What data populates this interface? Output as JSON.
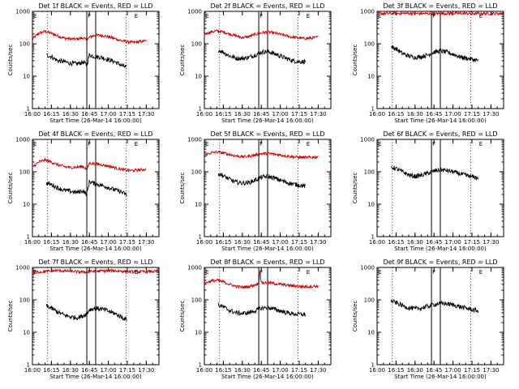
{
  "chart_data": [
    {
      "type": "line",
      "title": "Det 1f BLACK = Events, RED = LLD",
      "xlabel": "Start Time (26-Mar-14 16:00:00)",
      "ylabel": "Counts/sec",
      "yscale": "log",
      "ylim": [
        1,
        1000
      ],
      "xlim_minutes": [
        0,
        100
      ],
      "xticks": [
        "16:00",
        "16:15",
        "16:30",
        "16:45",
        "17:00",
        "17:15",
        "17:30"
      ],
      "yticks": [
        "1",
        "10",
        "100",
        "1000"
      ],
      "markers": [
        {
          "label": "E",
          "time": "16:00"
        },
        {
          "label": "F",
          "time": "16:43"
        },
        {
          "label": "E",
          "time": "17:20"
        }
      ],
      "vlines_dotted": [
        "16:12",
        "17:14"
      ],
      "vlines_solid": [
        "16:43",
        "16:50"
      ],
      "series": [
        {
          "color": "#cc0000",
          "t": [
            0,
            5,
            10,
            15,
            20,
            25,
            30,
            35,
            40,
            43,
            45,
            50,
            55,
            60,
            65,
            70,
            75,
            80,
            85,
            90
          ],
          "values": [
            140,
            210,
            240,
            210,
            175,
            150,
            140,
            140,
            150,
            130,
            160,
            185,
            180,
            165,
            145,
            125,
            115,
            110,
            115,
            125
          ]
        },
        {
          "color": "#000000",
          "t": [
            11,
            15,
            20,
            25,
            30,
            35,
            40,
            43,
            45,
            50,
            55,
            60,
            65,
            70,
            75
          ],
          "values": [
            45,
            40,
            30,
            28,
            25,
            24,
            27,
            22,
            45,
            40,
            38,
            32,
            28,
            22,
            18
          ]
        }
      ]
    },
    {
      "type": "line",
      "title": "Det 2f BLACK = Events, RED = LLD",
      "xlabel": "Start Time (26-Mar-14 16:00:00)",
      "ylabel": "Counts/sec",
      "yscale": "log",
      "ylim": [
        1,
        1000
      ],
      "xlim_minutes": [
        0,
        100
      ],
      "xticks": [
        "16:00",
        "16:15",
        "16:30",
        "16:45",
        "17:00",
        "17:15",
        "17:30"
      ],
      "yticks": [
        "1",
        "10",
        "100",
        "1000"
      ],
      "markers": [
        {
          "label": "E",
          "time": "16:00"
        },
        {
          "label": "F",
          "time": "16:43"
        },
        {
          "label": "E",
          "time": "17:20"
        }
      ],
      "vlines_dotted": [
        "16:12",
        "17:14"
      ],
      "vlines_solid": [
        "16:43",
        "16:50"
      ],
      "series": [
        {
          "color": "#cc0000",
          "t": [
            0,
            5,
            10,
            15,
            20,
            25,
            30,
            35,
            40,
            45,
            50,
            55,
            60,
            65,
            70,
            75,
            80,
            85,
            90
          ],
          "values": [
            200,
            230,
            250,
            230,
            200,
            175,
            155,
            165,
            195,
            215,
            230,
            215,
            195,
            175,
            160,
            150,
            145,
            150,
            160
          ]
        },
        {
          "color": "#000000",
          "t": [
            11,
            15,
            20,
            25,
            30,
            35,
            40,
            45,
            50,
            55,
            60,
            65,
            70,
            75,
            80
          ],
          "values": [
            65,
            55,
            42,
            36,
            35,
            38,
            45,
            55,
            58,
            50,
            42,
            35,
            30,
            28,
            28
          ]
        }
      ]
    },
    {
      "type": "line",
      "title": "Det 3f BLACK = Events, RED = LLD",
      "xlabel": "Start Time (26-Mar-14 16:00:00)",
      "ylabel": "Counts/sec",
      "yscale": "log",
      "ylim": [
        1,
        1000
      ],
      "xlim_minutes": [
        0,
        100
      ],
      "xticks": [
        "16:00",
        "16:15",
        "16:30",
        "16:45",
        "17:00",
        "17:15",
        "17:30"
      ],
      "yticks": [
        "1",
        "10",
        "100",
        "1000"
      ],
      "markers": [
        {
          "label": "E",
          "time": "16:00"
        },
        {
          "label": "F",
          "time": "16:43"
        },
        {
          "label": "E",
          "time": "17:20"
        }
      ],
      "vlines_dotted": [
        "16:12",
        "17:14"
      ],
      "vlines_solid": [
        "16:43",
        "16:50"
      ],
      "series": [
        {
          "color": "#cc0000",
          "t": [
            0,
            10,
            20,
            30,
            40,
            50,
            60,
            70,
            80,
            90,
            100
          ],
          "values": [
            850,
            860,
            870,
            860,
            850,
            860,
            870,
            860,
            850,
            855,
            860
          ]
        },
        {
          "color": "#000000",
          "t": [
            11,
            15,
            20,
            25,
            30,
            35,
            40,
            45,
            50,
            55,
            60,
            65,
            70,
            75,
            80
          ],
          "values": [
            80,
            70,
            50,
            42,
            38,
            40,
            45,
            55,
            60,
            55,
            48,
            40,
            36,
            33,
            30
          ]
        }
      ]
    },
    {
      "type": "line",
      "title": "Det 4f BLACK = Events, RED = LLD",
      "xlabel": "Start Time (26-Mar-14 16:00:00)",
      "ylabel": "Counts/sec",
      "yscale": "log",
      "ylim": [
        1,
        1000
      ],
      "xlim_minutes": [
        0,
        100
      ],
      "xticks": [
        "16:00",
        "16:15",
        "16:30",
        "16:45",
        "17:00",
        "17:15",
        "17:30"
      ],
      "yticks": [
        "1",
        "10",
        "100",
        "1000"
      ],
      "markers": [
        {
          "label": "E",
          "time": "16:00"
        },
        {
          "label": "F",
          "time": "16:43"
        },
        {
          "label": "E",
          "time": "17:20"
        }
      ],
      "vlines_dotted": [
        "16:12",
        "17:14"
      ],
      "vlines_solid": [
        "16:43",
        "16:50"
      ],
      "series": [
        {
          "color": "#cc0000",
          "t": [
            0,
            5,
            10,
            15,
            20,
            25,
            30,
            35,
            40,
            43,
            45,
            50,
            55,
            60,
            65,
            70,
            75,
            80,
            85,
            90
          ],
          "values": [
            140,
            200,
            230,
            200,
            165,
            145,
            135,
            140,
            145,
            120,
            185,
            175,
            165,
            150,
            135,
            120,
            110,
            110,
            115,
            120
          ]
        },
        {
          "color": "#000000",
          "t": [
            11,
            15,
            20,
            25,
            30,
            35,
            40,
            43,
            45,
            50,
            55,
            60,
            65,
            70,
            75
          ],
          "values": [
            45,
            40,
            32,
            27,
            25,
            23,
            26,
            20,
            50,
            42,
            38,
            33,
            28,
            24,
            19
          ]
        }
      ]
    },
    {
      "type": "line",
      "title": "Det 5f BLACK = Events, RED = LLD",
      "xlabel": "Start Time (26-Mar-14 16:00:00)",
      "ylabel": "Counts/sec",
      "yscale": "log",
      "ylim": [
        1,
        1000
      ],
      "xlim_minutes": [
        0,
        100
      ],
      "xticks": [
        "16:00",
        "16:15",
        "16:30",
        "16:45",
        "17:00",
        "17:15",
        "17:30"
      ],
      "yticks": [
        "1",
        "10",
        "100",
        "1000"
      ],
      "markers": [
        {
          "label": "E",
          "time": "16:00"
        },
        {
          "label": "F",
          "time": "16:43"
        },
        {
          "label": "E",
          "time": "17:20"
        }
      ],
      "vlines_dotted": [
        "16:12",
        "17:14"
      ],
      "vlines_solid": [
        "16:43",
        "16:50"
      ],
      "series": [
        {
          "color": "#cc0000",
          "t": [
            0,
            5,
            10,
            15,
            20,
            25,
            30,
            35,
            40,
            45,
            50,
            55,
            60,
            65,
            70,
            75,
            80,
            85,
            90
          ],
          "values": [
            330,
            380,
            410,
            380,
            340,
            310,
            290,
            300,
            330,
            360,
            370,
            350,
            330,
            310,
            290,
            280,
            275,
            280,
            290
          ]
        },
        {
          "color": "#000000",
          "t": [
            11,
            15,
            20,
            25,
            30,
            35,
            40,
            45,
            50,
            55,
            60,
            65,
            70,
            75,
            80
          ],
          "values": [
            90,
            75,
            58,
            48,
            45,
            46,
            55,
            68,
            72,
            65,
            55,
            47,
            42,
            39,
            36
          ]
        }
      ]
    },
    {
      "type": "line",
      "title": "Det 6f BLACK = Events, RED = LLD",
      "xlabel": "Start Time (26-Mar-14 16:00:00)",
      "ylabel": "Counts/sec",
      "yscale": "log",
      "ylim": [
        1,
        1000
      ],
      "xlim_minutes": [
        0,
        100
      ],
      "xticks": [
        "16:00",
        "16:15",
        "16:30",
        "16:45",
        "17:00",
        "17:15",
        "17:30"
      ],
      "yticks": [
        "1",
        "10",
        "100",
        "1000"
      ],
      "markers": [
        {
          "label": "E",
          "time": "16:00"
        },
        {
          "label": "F",
          "time": "16:43"
        },
        {
          "label": "E",
          "time": "17:20"
        }
      ],
      "vlines_dotted": [
        "16:12",
        "17:14"
      ],
      "vlines_solid": [
        "16:43",
        "16:50"
      ],
      "series": [
        {
          "color": "#000000",
          "t": [
            11,
            15,
            20,
            25,
            30,
            35,
            40,
            45,
            50,
            55,
            60,
            65,
            70,
            75,
            80
          ],
          "values": [
            140,
            125,
            100,
            80,
            72,
            78,
            90,
            105,
            115,
            110,
            100,
            88,
            78,
            70,
            65
          ]
        }
      ]
    },
    {
      "type": "line",
      "title": "Det 7f BLACK = Events, RED = LLD",
      "xlabel": "Start Time (26-Mar-14 16:00:00)",
      "ylabel": "Counts/sec",
      "yscale": "log",
      "ylim": [
        1,
        1000
      ],
      "xlim_minutes": [
        0,
        100
      ],
      "xticks": [
        "16:00",
        "16:15",
        "16:30",
        "16:45",
        "17:00",
        "17:15",
        "17:30"
      ],
      "yticks": [
        "1",
        "10",
        "100",
        "1000"
      ],
      "markers": [
        {
          "label": "E",
          "time": "16:00"
        },
        {
          "label": "F",
          "time": "16:43"
        },
        {
          "label": "E",
          "time": "17:20"
        }
      ],
      "vlines_dotted": [
        "16:12",
        "17:14"
      ],
      "vlines_solid": [
        "16:43",
        "16:50"
      ],
      "series": [
        {
          "color": "#cc0000",
          "t": [
            0,
            10,
            20,
            30,
            40,
            50,
            60,
            70,
            80,
            90,
            100
          ],
          "values": [
            700,
            750,
            800,
            760,
            720,
            760,
            800,
            770,
            730,
            740,
            760
          ]
        },
        {
          "color": "#000000",
          "t": [
            11,
            15,
            20,
            25,
            30,
            35,
            40,
            43,
            45,
            50,
            55,
            60,
            65,
            70,
            75
          ],
          "values": [
            65,
            55,
            42,
            34,
            30,
            28,
            32,
            38,
            50,
            55,
            52,
            45,
            38,
            30,
            24
          ]
        }
      ]
    },
    {
      "type": "line",
      "title": "Det 8f BLACK = Events, RED = LLD",
      "xlabel": "Start Time (26-Mar-14 16:00:00)",
      "ylabel": "Counts/sec",
      "yscale": "log",
      "ylim": [
        1,
        1000
      ],
      "xlim_minutes": [
        0,
        100
      ],
      "xticks": [
        "16:00",
        "16:15",
        "16:30",
        "16:45",
        "17:00",
        "17:15",
        "17:30"
      ],
      "yticks": [
        "1",
        "10",
        "100",
        "1000"
      ],
      "markers": [
        {
          "label": "E",
          "time": "16:00"
        },
        {
          "label": "F",
          "time": "16:43"
        },
        {
          "label": "E",
          "time": "17:20"
        }
      ],
      "vlines_dotted": [
        "16:12",
        "17:14"
      ],
      "vlines_solid": [
        "16:43",
        "16:50"
      ],
      "series": [
        {
          "color": "#cc0000",
          "t": [
            0,
            5,
            10,
            15,
            20,
            25,
            30,
            35,
            40,
            43,
            44,
            45,
            50,
            55,
            60,
            65,
            70,
            75,
            80,
            85,
            90
          ],
          "values": [
            320,
            380,
            400,
            360,
            300,
            260,
            245,
            255,
            290,
            320,
            900,
            330,
            340,
            320,
            300,
            285,
            270,
            260,
            255,
            260,
            265
          ]
        },
        {
          "color": "#000000",
          "t": [
            11,
            15,
            20,
            25,
            30,
            35,
            40,
            45,
            50,
            55,
            60,
            65,
            70,
            75,
            80
          ],
          "values": [
            70,
            60,
            47,
            40,
            38,
            40,
            46,
            55,
            58,
            52,
            46,
            40,
            37,
            36,
            35
          ]
        }
      ]
    },
    {
      "type": "line",
      "title": "Det 9f BLACK = Events, RED = LLD",
      "xlabel": "Start Time (26-Mar-14 16:00:00)",
      "ylabel": "Counts/sec",
      "yscale": "log",
      "ylim": [
        1,
        1000
      ],
      "xlim_minutes": [
        0,
        100
      ],
      "xticks": [
        "16:00",
        "16:15",
        "16:30",
        "16:45",
        "17:00",
        "17:15",
        "17:30"
      ],
      "yticks": [
        "1",
        "10",
        "100",
        "1000"
      ],
      "markers": [
        {
          "label": "E",
          "time": "16:00"
        },
        {
          "label": "F",
          "time": "16:43"
        },
        {
          "label": "E",
          "time": "17:20"
        }
      ],
      "vlines_dotted": [
        "16:12",
        "17:14"
      ],
      "vlines_solid": [
        "16:43",
        "16:50"
      ],
      "series": [
        {
          "color": "#000000",
          "t": [
            11,
            15,
            20,
            25,
            30,
            35,
            40,
            45,
            50,
            55,
            60,
            65,
            70,
            75,
            80
          ],
          "values": [
            92,
            82,
            66,
            57,
            53,
            56,
            63,
            72,
            78,
            76,
            70,
            62,
            56,
            50,
            46
          ]
        }
      ]
    }
  ]
}
